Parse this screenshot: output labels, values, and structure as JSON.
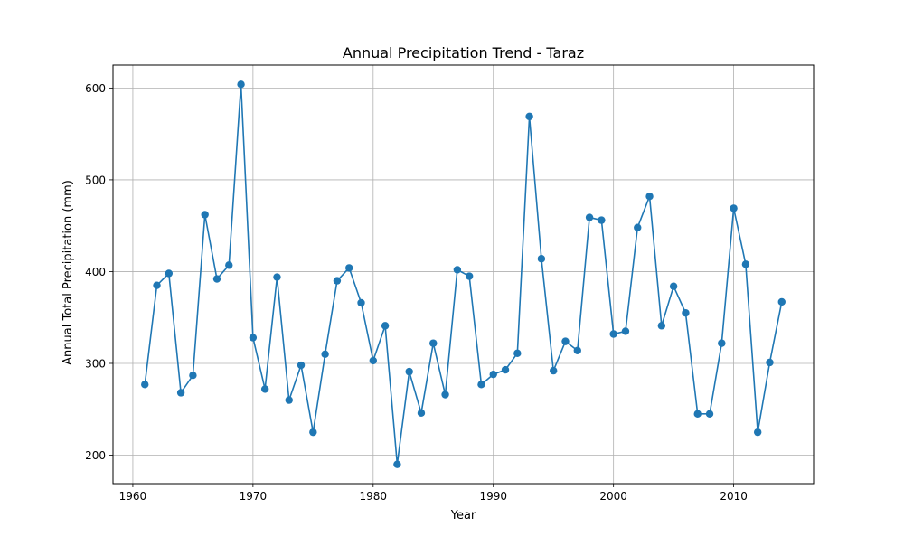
{
  "chart_data": {
    "type": "line",
    "title": "Annual Precipitation Trend - Taraz",
    "xlabel": "Year",
    "ylabel": "Annual Total Precipitation (mm)",
    "xlim": [
      1958.35,
      2016.65
    ],
    "ylim": [
      169,
      625
    ],
    "xticks": [
      1960,
      1970,
      1980,
      1990,
      2000,
      2010
    ],
    "yticks": [
      200,
      300,
      400,
      500,
      600
    ],
    "grid": true,
    "marker": "circle",
    "series": [
      {
        "color": "#1f77b4",
        "x": [
          1961,
          1962,
          1963,
          1964,
          1965,
          1966,
          1967,
          1968,
          1969,
          1970,
          1971,
          1972,
          1973,
          1974,
          1975,
          1976,
          1977,
          1978,
          1979,
          1980,
          1981,
          1982,
          1983,
          1984,
          1985,
          1986,
          1987,
          1988,
          1989,
          1990,
          1991,
          1992,
          1993,
          1994,
          1995,
          1996,
          1997,
          1998,
          1999,
          2000,
          2001,
          2002,
          2003,
          2004,
          2005,
          2006,
          2007,
          2008,
          2009,
          2010,
          2011,
          2012,
          2013,
          2014
        ],
        "y": [
          277,
          385,
          398,
          268,
          287,
          462,
          392,
          407,
          604,
          328,
          272,
          394,
          260,
          298,
          225,
          310,
          390,
          404,
          366,
          303,
          341,
          190,
          291,
          246,
          322,
          266,
          402,
          395,
          277,
          288,
          293,
          311,
          569,
          414,
          292,
          324,
          314,
          459,
          456,
          332,
          335,
          448,
          482,
          341,
          384,
          355,
          245,
          245,
          322,
          469,
          408,
          225,
          301,
          367
        ]
      }
    ]
  }
}
